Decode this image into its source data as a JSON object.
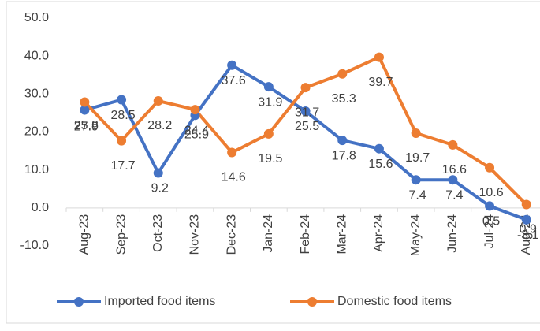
{
  "chart_data": {
    "type": "line",
    "categories": [
      "Aug-23",
      "Sep-23",
      "Oct-23",
      "Nov-23",
      "Dec-23",
      "Jan-24",
      "Feb-24",
      "Mar-24",
      "Apr-24",
      "May-24",
      "Jun-24",
      "Jul-24",
      "Aug-24"
    ],
    "series": [
      {
        "name": "Imported food items",
        "color": "#4472c4",
        "values": [
          25.8,
          28.5,
          9.2,
          24.4,
          37.6,
          31.9,
          25.5,
          17.8,
          15.6,
          7.4,
          7.4,
          0.5,
          -3.1
        ]
      },
      {
        "name": "Domestic food items",
        "color": "#ed7d31",
        "values": [
          27.9,
          17.7,
          28.2,
          25.9,
          14.6,
          19.5,
          31.7,
          35.3,
          39.7,
          19.7,
          16.6,
          10.6,
          0.9
        ]
      }
    ],
    "ylim": [
      -10,
      50
    ],
    "yticks": [
      {
        "value": -10,
        "label": "-10.0"
      },
      {
        "value": 0,
        "label": "0.0"
      },
      {
        "value": 10,
        "label": "10.0"
      },
      {
        "value": 20,
        "label": "20.0"
      },
      {
        "value": 30,
        "label": "30.0"
      },
      {
        "value": 40,
        "label": "40.0"
      },
      {
        "value": 50,
        "label": "50.0"
      }
    ],
    "grid": false,
    "legend": "bottom"
  }
}
